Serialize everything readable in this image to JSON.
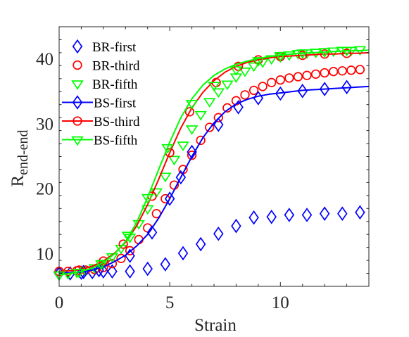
{
  "chart_data": {
    "type": "line",
    "xlabel": "Strain",
    "ylabel_main": "R",
    "ylabel_sub": "end-end",
    "xlim": [
      0,
      14
    ],
    "ylim": [
      5,
      45
    ],
    "xticks": [
      0,
      5,
      10
    ],
    "yticks": [
      10,
      20,
      30,
      40
    ],
    "grid": false,
    "legend_position": "top-left",
    "series": [
      {
        "name": "BR-first",
        "kind": "markers",
        "marker": "diamond",
        "color": "#0000ff",
        "x": [
          0.0,
          0.5,
          1.0,
          1.5,
          2.0,
          2.4,
          3.2,
          4.0,
          4.8,
          5.6,
          6.4,
          7.2,
          8.0,
          8.8,
          9.6,
          10.4,
          11.2,
          12.0,
          12.8,
          13.6
        ],
        "y": [
          7.0,
          7.0,
          7.1,
          7.2,
          7.3,
          7.3,
          7.3,
          7.7,
          8.4,
          10.1,
          11.5,
          13.1,
          14.3,
          15.6,
          15.7,
          16.0,
          16.0,
          16.2,
          16.2,
          16.4
        ]
      },
      {
        "name": "BR-third",
        "kind": "markers",
        "marker": "circle",
        "color": "#ff0000",
        "x": [
          0.0,
          0.4,
          0.8,
          1.2,
          1.6,
          2.0,
          2.4,
          2.8,
          3.2,
          3.6,
          4.0,
          4.4,
          4.8,
          5.2,
          5.6,
          6.0,
          6.4,
          6.8,
          7.2,
          7.6,
          8.0,
          8.4,
          8.8,
          9.2,
          9.6,
          10.0,
          10.4,
          10.8,
          11.2,
          11.6,
          12.0,
          12.4,
          12.8,
          13.2,
          13.6
        ],
        "y": [
          7.3,
          7.3,
          7.4,
          7.5,
          7.6,
          7.9,
          8.5,
          9.3,
          10.5,
          12.2,
          14.0,
          16.2,
          18.5,
          20.6,
          23.0,
          25.2,
          27.5,
          29.5,
          31.0,
          32.5,
          33.6,
          34.5,
          35.2,
          35.8,
          36.4,
          36.8,
          37.1,
          37.3,
          37.5,
          37.7,
          37.9,
          38.1,
          38.2,
          38.3,
          38.4
        ]
      },
      {
        "name": "BR-fifth",
        "kind": "markers",
        "marker": "triangle-down",
        "color": "#00ff00",
        "x": [
          0.0,
          0.4,
          0.8,
          1.2,
          1.6,
          2.0,
          2.4,
          2.8,
          3.2,
          3.6,
          4.0,
          4.4,
          4.8,
          5.2,
          5.6,
          6.0,
          6.4,
          6.8,
          7.2,
          7.6,
          8.0,
          8.4,
          8.8,
          9.2,
          9.6,
          10.0,
          10.4,
          10.8,
          11.2,
          11.6,
          12.0,
          12.4,
          12.8,
          13.2,
          13.6
        ],
        "y": [
          6.8,
          7.0,
          7.2,
          7.5,
          7.9,
          8.6,
          9.6,
          10.9,
          12.6,
          14.7,
          17.0,
          19.6,
          22.0,
          24.6,
          26.8,
          29.3,
          31.5,
          33.5,
          35.0,
          36.2,
          37.3,
          38.2,
          39.0,
          39.6,
          40.1,
          40.4,
          40.7,
          40.9,
          41.0,
          41.1,
          41.2,
          41.3,
          41.4,
          41.4,
          41.5
        ]
      },
      {
        "name": "BS-first",
        "kind": "line-markers",
        "marker": "diamond",
        "color": "#0000ff",
        "x": [
          0.0,
          0.5,
          1.0,
          1.5,
          2.0,
          2.5,
          3.0,
          3.5,
          4.0,
          4.5,
          5.0,
          5.5,
          6.0,
          6.5,
          7.0,
          7.5,
          8.0,
          8.5,
          9.0,
          9.5,
          10.0,
          10.5,
          11.0,
          11.5,
          12.0,
          12.5,
          13.0,
          13.5,
          14.0
        ],
        "y": [
          7.0,
          7.1,
          7.2,
          7.5,
          8.0,
          8.8,
          9.8,
          11.2,
          13.0,
          15.5,
          18.5,
          21.8,
          25.0,
          27.9,
          30.2,
          31.9,
          33.1,
          33.8,
          34.3,
          34.6,
          34.8,
          35.0,
          35.2,
          35.3,
          35.4,
          35.5,
          35.6,
          35.7,
          35.8
        ],
        "marker_x": [
          0.0,
          1.1,
          1.8,
          3.2,
          4.2,
          5.0,
          5.5,
          6.0,
          7.2,
          8.1,
          9.0,
          10.0,
          11.0,
          12.0,
          13.0
        ],
        "marker_y": [
          7.0,
          7.2,
          7.5,
          9.7,
          13.3,
          18.5,
          21.8,
          25.7,
          29.9,
          32.6,
          34.0,
          34.7,
          35.1,
          35.4,
          35.7
        ]
      },
      {
        "name": "BS-third",
        "kind": "line-markers",
        "marker": "circle",
        "color": "#ff0000",
        "x": [
          0.0,
          0.5,
          1.0,
          1.5,
          2.0,
          2.5,
          3.0,
          3.5,
          4.0,
          4.5,
          5.0,
          5.5,
          6.0,
          6.5,
          7.0,
          7.5,
          8.0,
          8.5,
          9.0,
          9.5,
          10.0,
          10.5,
          11.0,
          11.5,
          12.0,
          12.5,
          13.0,
          13.5,
          14.0
        ],
        "y": [
          7.3,
          7.4,
          7.6,
          8.1,
          8.9,
          10.1,
          11.8,
          14.3,
          17.6,
          21.5,
          25.6,
          29.4,
          32.5,
          34.9,
          36.7,
          38.0,
          38.9,
          39.5,
          39.9,
          40.2,
          40.4,
          40.5,
          40.6,
          40.7,
          40.8,
          40.8,
          40.9,
          40.9,
          41.0
        ],
        "marker_x": [
          0.0,
          0.9,
          2.0,
          2.9,
          4.2,
          5.0,
          5.9,
          7.1,
          8.1,
          9.0,
          10.0,
          11.0,
          12.0,
          13.0
        ],
        "marker_y": [
          7.3,
          7.5,
          8.9,
          11.5,
          18.9,
          25.6,
          31.9,
          36.4,
          38.9,
          39.9,
          40.4,
          40.6,
          40.8,
          40.9
        ]
      },
      {
        "name": "BS-fifth",
        "kind": "line-markers",
        "marker": "triangle-down",
        "color": "#00ff00",
        "x": [
          0.0,
          0.5,
          1.0,
          1.5,
          2.0,
          2.5,
          3.0,
          3.5,
          4.0,
          4.5,
          5.0,
          5.5,
          6.0,
          6.5,
          7.0,
          7.5,
          8.0,
          8.5,
          9.0,
          9.5,
          10.0,
          10.5,
          11.0,
          11.5,
          12.0,
          12.5,
          13.0,
          13.5,
          14.0
        ],
        "y": [
          6.8,
          7.0,
          7.3,
          7.8,
          8.7,
          10.0,
          11.9,
          14.8,
          18.7,
          23.0,
          27.2,
          31.0,
          33.9,
          36.0,
          37.5,
          38.5,
          39.2,
          39.7,
          40.1,
          40.4,
          40.6,
          40.8,
          40.9,
          41.0,
          41.1,
          41.2,
          41.3,
          41.3,
          41.4
        ],
        "marker_x": [
          0.0,
          0.9,
          1.9,
          3.1,
          4.0,
          4.9,
          6.0,
          7.0,
          8.0,
          9.0,
          10.0,
          11.0,
          12.0,
          13.0
        ],
        "marker_y": [
          6.8,
          7.2,
          8.5,
          12.9,
          18.7,
          26.4,
          33.2,
          36.0,
          38.4,
          39.8,
          40.6,
          41.0,
          41.2,
          41.4
        ]
      }
    ]
  }
}
